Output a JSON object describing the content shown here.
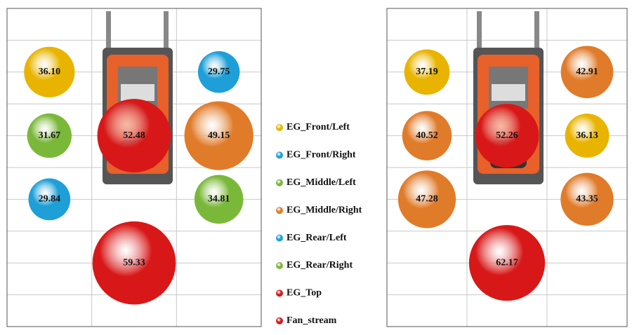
{
  "legend": [
    {
      "name": "EG_Front/Left",
      "color": "#e8b400"
    },
    {
      "name": "EG_Front/Right",
      "color": "#1e9fd8"
    },
    {
      "name": "EG_Middle/Left",
      "color": "#7ab83a"
    },
    {
      "name": "EG_Middle/Right",
      "color": "#e07b2a"
    },
    {
      "name": "EG_Rear/Left",
      "color": "#1e9fd8"
    },
    {
      "name": "EG_Rear/Right",
      "color": "#7ab83a"
    },
    {
      "name": "EG_Top",
      "color": "#d81818"
    },
    {
      "name": "Fan_stream",
      "color": "#d81818"
    }
  ],
  "chart_data": [
    {
      "type": "bubble",
      "xlim": [
        0,
        3
      ],
      "ylim": [
        0,
        10
      ],
      "xticks": [
        0,
        1,
        2,
        3
      ],
      "yticks": [
        0,
        1,
        2,
        3,
        4,
        5,
        6,
        7,
        8,
        9,
        10
      ],
      "grid": true,
      "x": [
        0.5,
        2.5,
        0.5,
        2.5,
        0.5,
        2.5,
        1.5,
        1.5
      ],
      "y": [
        8,
        8,
        6,
        6,
        4,
        4,
        6,
        2
      ],
      "values": [
        36.1,
        29.75,
        31.67,
        49.15,
        29.84,
        34.81,
        52.48,
        59.33
      ],
      "value_labels": [
        "36.10",
        "29.75",
        "31.67",
        "49.15",
        "29.84",
        "34.81",
        "52.48",
        "59.33"
      ],
      "colors": [
        "#e8b400",
        "#1e9fd8",
        "#7ab83a",
        "#e07b2a",
        "#1e9fd8",
        "#7ab83a",
        "#d81818",
        "#d81818"
      ]
    },
    {
      "type": "bubble",
      "xlim": [
        0,
        3
      ],
      "ylim": [
        0,
        10
      ],
      "xticks": [
        0,
        1,
        2,
        3
      ],
      "yticks": [
        0,
        1,
        2,
        3,
        4,
        5,
        6,
        7,
        8,
        9,
        10
      ],
      "grid": true,
      "x": [
        0.5,
        2.5,
        0.5,
        2.5,
        0.5,
        2.5,
        1.5,
        1.5
      ],
      "y": [
        8,
        8,
        6,
        6,
        4,
        4,
        6,
        2
      ],
      "values": [
        37.19,
        42.91,
        40.52,
        36.13,
        47.28,
        43.35,
        52.26,
        62.17
      ],
      "colors": [
        "#e8b400",
        "#e07b2a",
        "#e07b2a",
        "#e8b400",
        "#e07b2a",
        "#e07b2a",
        "#d81818",
        "#d81818"
      ]
    }
  ]
}
